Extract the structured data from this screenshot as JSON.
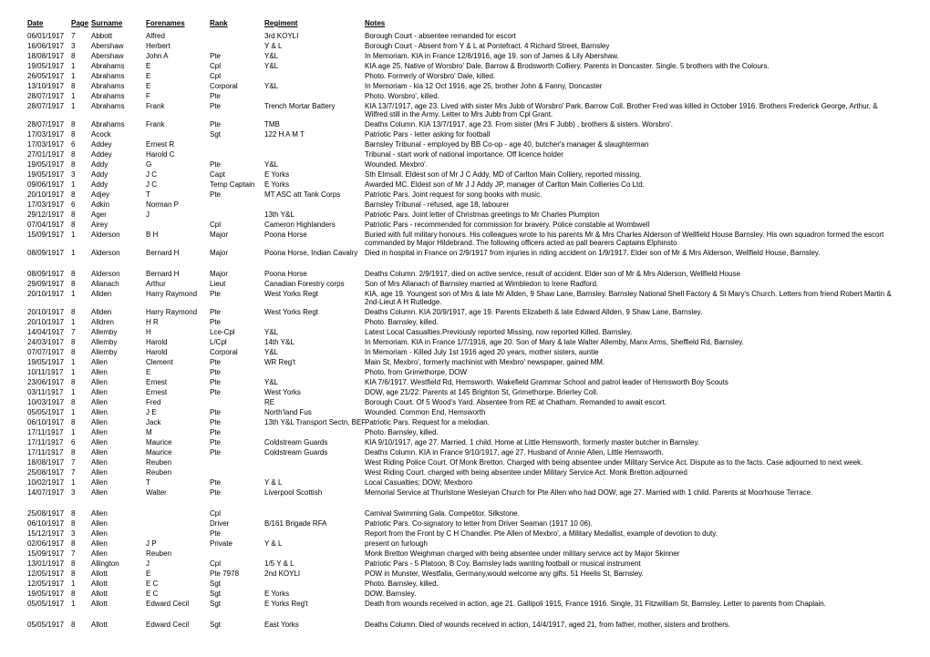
{
  "headers": [
    "Date",
    "Page",
    "Surname",
    "Forenames",
    "Rank",
    "Regiment",
    "Notes"
  ],
  "rows": [
    {
      "date": "06/01/1917",
      "page": "7",
      "surname": "Abbott",
      "forenames": "Alfred",
      "rank": "",
      "regiment": "3rd KOYLI",
      "notes": "Borough Court - absentee remanded for escort"
    },
    {
      "date": "16/06/1917",
      "page": "3",
      "surname": "Abershaw",
      "forenames": "Herbert",
      "rank": "",
      "regiment": "Y & L",
      "notes": "Borough Court - Absent from Y & L at Pontefract.  4 Richard Street, Barnsley"
    },
    {
      "date": "18/08/1917",
      "page": "8",
      "surname": "Abershaw",
      "forenames": "John A",
      "rank": "Pte",
      "regiment": "Y&L",
      "notes": "In Memoriam. KIA in France 12/8/1916, age 19. son of James & Lily Abershaw."
    },
    {
      "date": "19/05/1917",
      "page": "1",
      "surname": "Abrahams",
      "forenames": "E",
      "rank": "Cpl",
      "regiment": "Y&L",
      "notes": "KIA age 25. Native of Worsbro' Dale, Barrow & Brodsworth Colliery. Parents in Doncaster. Single. 5 brothers with the Colours."
    },
    {
      "date": "26/05/1917",
      "page": "1",
      "surname": "Abrahams",
      "forenames": "E",
      "rank": "Cpl",
      "regiment": "",
      "notes": "Photo. Formerly of Worsbro' Dale, killed."
    },
    {
      "date": "13/10/1917",
      "page": "8",
      "surname": "Abrahams",
      "forenames": "E",
      "rank": "Corporal",
      "regiment": "Y&L",
      "notes": "In Memoriam - kia 12 Oct 1916, age 25, brother John & Fanny, Doncaster"
    },
    {
      "date": "28/07/1917",
      "page": "1",
      "surname": "Abrahams",
      "forenames": "F",
      "rank": "Pte",
      "regiment": "",
      "notes": "Photo. Worsbro', killed."
    },
    {
      "date": "28/07/1917",
      "page": "1",
      "surname": "Abrahams",
      "forenames": "Frank",
      "rank": "Pte",
      "regiment": "Trench Mortar Battery",
      "notes": "KIA 13/7/1917, age 23. Lived with sister Mrs Jubb of Worsbro' Park. Barrow Coll. Brother Fred was killed in October 1916.  Brothers Frederick George, Arthur, & Wilfred still in the Army. Letter to Mrs Jubb from Cpl Grant."
    },
    {
      "date": "28/07/1917",
      "page": "8",
      "surname": "Abrahams",
      "forenames": "Frank",
      "rank": "Pte",
      "regiment": "TMB",
      "notes": "Deaths Column. KIA 13/7/1917, age 23. From sister (Mrs F Jubb) , brothers & sisters. Worsbro'."
    },
    {
      "date": "17/03/1917",
      "page": "8",
      "surname": "Acock",
      "forenames": "",
      "rank": "Sgt",
      "regiment": "122 H A M T",
      "notes": "Patriotic Pars - letter asking for football"
    },
    {
      "date": "17/03/1917",
      "page": "6",
      "surname": "Addey",
      "forenames": "Ernest R",
      "rank": "",
      "regiment": "",
      "notes": "Barnsley Tribunal - employed by BB Co-op - age 40, butcher's manager & slaughterman"
    },
    {
      "date": "27/01/1917",
      "page": "8",
      "surname": "Addey",
      "forenames": "Harold C",
      "rank": "",
      "regiment": "",
      "notes": "Tribunal - start work of national importance. Off licence holder"
    },
    {
      "date": "19/05/1917",
      "page": "8",
      "surname": "Addy",
      "forenames": "G",
      "rank": "Pte",
      "regiment": "Y&L",
      "notes": "Wounded. Mexbro'."
    },
    {
      "date": "19/05/1917",
      "page": "3",
      "surname": "Addy",
      "forenames": "J C",
      "rank": "Capt",
      "regiment": "E Yorks",
      "notes": "Sth Elmsall. Eldest son of Mr J C Addy, MD of Carlton Main Colliery, reported missing."
    },
    {
      "date": "09/06/1917",
      "page": "1",
      "surname": "Addy",
      "forenames": "J C",
      "rank": "Temp Captain",
      "regiment": "E Yorks",
      "notes": "Awarded MC. Eldest son of Mr J J Addy JP, manager of Carlton Main Collieries Co Ltd."
    },
    {
      "date": "20/10/1917",
      "page": "8",
      "surname": "Adjey",
      "forenames": "T",
      "rank": "Pte",
      "regiment": "MT  ASC att Tank Corps",
      "notes": "Patriotic Pars. Joint request for song books with music."
    },
    {
      "date": "17/03/1917",
      "page": "6",
      "surname": "Adkin",
      "forenames": "Norman P",
      "rank": "",
      "regiment": "",
      "notes": "Barnsley Tribunal - refused, age 18, labourer"
    },
    {
      "date": "29/12/1917",
      "page": "8",
      "surname": "Ager",
      "forenames": "J",
      "rank": "",
      "regiment": "13th Y&L",
      "notes": "Patriotic Pars. Joint letter of Christmas greetings to Mr Charles Plumpton"
    },
    {
      "date": "07/04/1917",
      "page": "8",
      "surname": "Airey",
      "forenames": "",
      "rank": "Cpl",
      "regiment": "Cameron Highlanders",
      "notes": "Patriotic Pars - recommended for commission for bravery. Police constable at Wombwell"
    },
    {
      "date": "15/09/1917",
      "page": "1",
      "surname": "Alderson",
      "forenames": "B H",
      "rank": "Major",
      "regiment": "Poona Horse",
      "notes": "Buried with full military honours. His colleagues wrote to his parents Mr & Mrs Charles Alderson of Wellfield House Barnsley. His own squadron formed the escort commanded by Major Hildebrand. The following officers acted as pall bearers Captains Elphinsto"
    },
    {
      "date": "08/09/1917",
      "page": "1",
      "surname": "Alderson",
      "forenames": "Bernard H",
      "rank": "Major",
      "regiment": "Poona Horse, Indian Cavalry",
      "notes": "Died in hospital in France on 2/9/1917 from injuries in riding accident on 1/9/1917. Elder son of Mr & Mrs Alderson, Wellfield House, Barnsley."
    },
    {
      "gap": true
    },
    {
      "date": "08/09/1917",
      "page": "8",
      "surname": "Alderson",
      "forenames": "Bernard H",
      "rank": "Major",
      "regiment": "Poona Horse",
      "notes": "Deaths Column. 2/9/1917, died on active service, result of accident. Elder son of Mr & Mrs Alderson, Wellfield House"
    },
    {
      "date": "29/09/1917",
      "page": "8",
      "surname": "Allanach",
      "forenames": "Arthur",
      "rank": "Lieut",
      "regiment": "Canadian Forestry corps",
      "notes": "Son of Mrs Allanach of Barnsley married at Wimbledon to Irene Radford."
    },
    {
      "date": "20/10/1917",
      "page": "1",
      "surname": "Allden",
      "forenames": "Harry Raymond",
      "rank": "Pte",
      "regiment": "West Yorks Regt",
      "notes": "KIA, age 19. Youngest son of Mrs & late Mr Allden, 9 Shaw Lane, Barnsley. Barnsley National Shell Factory & St Mary's Church. Letters from friend Robert Martin & 2nd-Lieut A H Rutledge."
    },
    {
      "date": "20/10/1917",
      "page": "8",
      "surname": "Allden",
      "forenames": "Harry Raymond",
      "rank": "Pte",
      "regiment": "West Yorks Regt",
      "notes": "Deaths Column.  KIA 20/9/1917, age 19. Parents Elizabeth & late Edward Allden, 9 Shaw Lane, Barnsley."
    },
    {
      "date": "20/10/1917",
      "page": "1",
      "surname": "Alldren",
      "forenames": "H R",
      "rank": "Pte",
      "regiment": "",
      "notes": "Photo. Barnsley, killed."
    },
    {
      "date": "14/04/1917",
      "page": "7",
      "surname": "Allemby",
      "forenames": "H",
      "rank": "Lce-Cpl",
      "regiment": "Y&L",
      "notes": "Latest Local Casualties.Previously reported Missing, now reported Killed.  Barnsley."
    },
    {
      "date": "24/03/1917",
      "page": "8",
      "surname": "Allemby",
      "forenames": "Harold",
      "rank": "L/Cpl",
      "regiment": "14th Y&L",
      "notes": "In Memoriam.  KIA in France 1/7/1916, age 20. Son of Mary & late Walter Allemby, Manx Arms, Sheffield Rd, Barnsley."
    },
    {
      "date": "07/07/1917",
      "page": "8",
      "surname": "Allemby",
      "forenames": "Harold",
      "rank": "Corporal",
      "regiment": "Y&L",
      "notes": "In Memoriam - Killed July 1st 1916 aged 20 years, mother sisters, auntie"
    },
    {
      "date": "19/05/1917",
      "page": "1",
      "surname": "Allen",
      "forenames": "Clement",
      "rank": "Pte",
      "regiment": "WR Reg't",
      "notes": "Main St, Mexbro', formerly machinist with Mexbro' newspaper, gained MM."
    },
    {
      "date": "10/11/1917",
      "page": "1",
      "surname": "Allen",
      "forenames": "E",
      "rank": "Pte",
      "regiment": "",
      "notes": "Photo, from Grimethorpe, DOW"
    },
    {
      "date": "23/06/1917",
      "page": "8",
      "surname": "Allen",
      "forenames": "Ernest",
      "rank": "Pte",
      "regiment": "Y&L",
      "notes": "KIA 7/6/1917. Westfield Rd, Hemsworth. Wakefield Grammar School and patrol leader of Hemsworth Boy Scouts"
    },
    {
      "date": "03/11/1917",
      "page": "1",
      "surname": "Allen",
      "forenames": "Ernest",
      "rank": "Pte",
      "regiment": "West Yorks",
      "notes": "DOW, age 21/22. Parents at 145 Brighton St, Grimethorpe. Brierley Coll."
    },
    {
      "date": "10/03/1917",
      "page": "8",
      "surname": "Allen",
      "forenames": "Fred",
      "rank": "",
      "regiment": "RE",
      "notes": "Borough Court. Of 5 Wood's Yard. Absentee from RE at Chatham. Remanded to await escort."
    },
    {
      "date": "05/05/1917",
      "page": "1",
      "surname": "Allen",
      "forenames": "J E",
      "rank": "Pte",
      "regiment": "North'land Fus",
      "notes": "Wounded. Common End, Hemsworth"
    },
    {
      "date": "06/10/1917",
      "page": "8",
      "surname": "Allen",
      "forenames": "Jack",
      "rank": "Pte",
      "regiment": "13th Y&L Transport Sectn, BEF",
      "notes": "Patriotic Pars. Request for a melodian."
    },
    {
      "date": "17/11/1917",
      "page": "1",
      "surname": "Allen",
      "forenames": "M",
      "rank": "Pte",
      "regiment": "",
      "notes": "Photo. Barnsley, killed."
    },
    {
      "date": "17/11/1917",
      "page": "6",
      "surname": "Allen",
      "forenames": "Maurice",
      "rank": "Pte",
      "regiment": "Coldstream Guards",
      "notes": "KIA 9/10/1917, age 27. Married, 1 child. Home at Little Hemsworth, formerly master butcher in Barnsley."
    },
    {
      "date": "17/11/1917",
      "page": "8",
      "surname": "Allen",
      "forenames": "Maurice",
      "rank": "Pte",
      "regiment": "Coldstream Guards",
      "notes": "Deaths Column. KIA in France 9/10/1917, age 27. Husband of Annie Allen, Little Hemsworth."
    },
    {
      "date": "18/08/1917",
      "page": "7",
      "surname": "Allen",
      "forenames": "Reuben",
      "rank": "",
      "regiment": "",
      "notes": "West Riding Police Court. Of Monk Bretton. Charged with being absentee under Military Service Act.  Dispute as to the facts. Case adjourned to next week."
    },
    {
      "date": "25/08/1917",
      "page": "7",
      "surname": "Allen",
      "forenames": "Reuben",
      "rank": "",
      "regiment": "",
      "notes": "West Riding Court. charged with being absentee under Military Service Act. Monk Bretton.adjourned"
    },
    {
      "date": "10/02/1917",
      "page": "1",
      "surname": "Allen",
      "forenames": "T",
      "rank": "Pte",
      "regiment": "Y & L",
      "notes": "Local Casualties; DOW; Mexboro"
    },
    {
      "date": "14/07/1917",
      "page": "3",
      "surname": "Allen",
      "forenames": "Walter",
      "rank": "Pte",
      "regiment": "Liverpool Scottish",
      "notes": "Memorial Service at Thurlstone Wesleyan Church for Pte Allen who had DOW, age 27. Married with 1 child. Parents at Moorhouse Terrace."
    },
    {
      "gap": true
    },
    {
      "date": "25/08/1917",
      "page": "8",
      "surname": "Allen",
      "forenames": "",
      "rank": "Cpl",
      "regiment": "",
      "notes": "Carnival Swimming Gala. Competitor. Silkstone."
    },
    {
      "date": "06/10/1917",
      "page": "8",
      "surname": "Allen",
      "forenames": "",
      "rank": "Driver",
      "regiment": "B/161 Brigade RFA",
      "notes": "Patriotic Pars. Co-signatory to letter from Driver Seaman (1917 10 06)."
    },
    {
      "date": "15/12/1917",
      "page": "3",
      "surname": "Allen",
      "forenames": "",
      "rank": "Pte",
      "regiment": "",
      "notes": "Report from the Front by C H Chandler. Pte Allen of Mexbro', a Military Medallist, example of devotion to duty."
    },
    {
      "date": "02/06/1917",
      "page": "8",
      "surname": "Allen",
      "forenames": "J P",
      "rank": "Private",
      "regiment": "Y & L",
      "notes": "present on furlough"
    },
    {
      "date": "15/09/1917",
      "page": "7",
      "surname": "Allen",
      "forenames": "Reuben",
      "rank": "",
      "regiment": "",
      "notes": "Monk Bretton Weighman charged with being absentee under military service act by Major Skinner"
    },
    {
      "date": "13/01/1917",
      "page": "8",
      "surname": "Allington",
      "forenames": "J",
      "rank": "Cpl",
      "regiment": "1/5 Y & L",
      "notes": "Patriotic Pars - 5 Platoon, B Coy. Barnsley lads wanting football or musical instrument"
    },
    {
      "date": "12/05/1917",
      "page": "8",
      "surname": "Allott",
      "forenames": "E",
      "rank": "Pte 7978",
      "regiment": "2nd KOYLI",
      "notes": "POW in Munster, Westfalia, Germany,would welcome any gifts. 51 Heelis St, Barnsley."
    },
    {
      "date": "12/05/1917",
      "page": "1",
      "surname": "Allott",
      "forenames": "E C",
      "rank": "Sgt",
      "regiment": "",
      "notes": "Photo. Barnsley, killed."
    },
    {
      "date": "19/05/1917",
      "page": "8",
      "surname": "Allott",
      "forenames": "E C",
      "rank": "Sgt",
      "regiment": "E Yorks",
      "notes": "DOW. Barnsley."
    },
    {
      "date": "05/05/1917",
      "page": "1",
      "surname": "Allott",
      "forenames": "Edward Cecil",
      "rank": "Sgt",
      "regiment": "E Yorks Reg't",
      "notes": "Death from wounds received in action, age 21. Gallipoli 1915, France 1916. Single, 31 Fitzwilliam St, Barnsley.  Letter to parents from Chaplain."
    },
    {
      "gap": true
    },
    {
      "date": "05/05/1917",
      "page": "8",
      "surname": "Allott",
      "forenames": "Edward Cecil",
      "rank": "Sgt",
      "regiment": "East Yorks",
      "notes": "Deaths Column. Died of wounds received in action, 14/4/1917, aged 21, from father, mother, sisters and brothers."
    }
  ]
}
